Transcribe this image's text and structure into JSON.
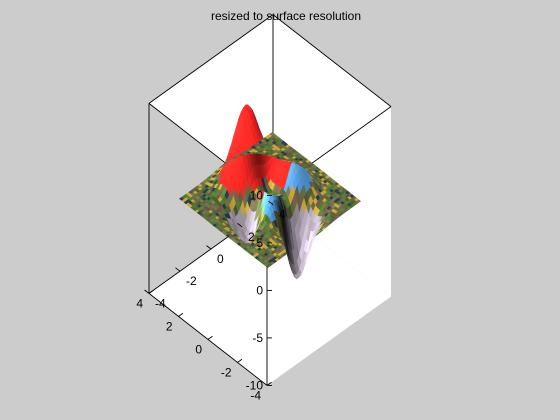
{
  "figure": {
    "background": "#cccccc",
    "axes_background": "#ffffff"
  },
  "chart_data": {
    "type": "surface",
    "title": "resized to surface resolution",
    "xlabel": "",
    "ylabel": "",
    "zlabel": "",
    "xlim": [
      -4,
      4
    ],
    "ylim": [
      -4,
      4
    ],
    "zlim": [
      -10,
      10
    ],
    "xticks": [
      "-4",
      "-2",
      "0",
      "2",
      "4"
    ],
    "yticks": [
      "-4",
      "-2",
      "0",
      "2",
      "4"
    ],
    "zticks": [
      "-10",
      "-5",
      "0",
      "5",
      "10"
    ],
    "grid": false,
    "box": true,
    "surface": {
      "function": "peaks",
      "shading": "faceted-texture",
      "description_colors": {
        "blue_peak": "#5aa6ee",
        "red_peak": "#ff2a24",
        "flat_texture": "#6f7a3d"
      },
      "approx_extrema": [
        {
          "label": "main peak",
          "x": 0,
          "y": 1.6,
          "z": 8.1
        },
        {
          "label": "secondary peak",
          "x": -1.3,
          "y": -0.2,
          "z": 3.8
        },
        {
          "label": "trough",
          "x": 0.2,
          "y": -1.6,
          "z": -6.5
        }
      ]
    }
  }
}
